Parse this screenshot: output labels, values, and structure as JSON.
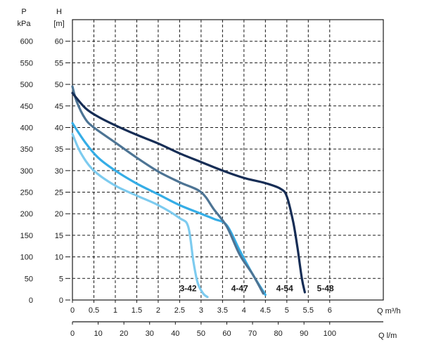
{
  "chart_data": {
    "type": "line",
    "head_axis": {
      "title": "H",
      "unit": "[m]",
      "range": [
        0,
        65
      ],
      "ticks": [
        0,
        5,
        10,
        15,
        20,
        25,
        30,
        35,
        40,
        45,
        50,
        55,
        60
      ],
      "grid": true
    },
    "pressure_axis": {
      "title": "P",
      "unit": "kPa",
      "ticks": [
        0,
        50,
        100,
        150,
        200,
        250,
        300,
        350,
        400,
        450,
        500,
        550,
        600
      ]
    },
    "flow_axis_m3h": {
      "label": "Q m³/h",
      "range": [
        0,
        7.25
      ],
      "ticks": [
        "0",
        "0.5",
        "1",
        "1.5",
        "2",
        "2.5",
        "3",
        "3.5",
        "4",
        "4.5",
        "5",
        "5.5",
        "6"
      ],
      "grid": true
    },
    "flow_axis_lmin": {
      "label": "Q l/m",
      "ticks": [
        "0",
        "10",
        "20",
        "30",
        "40",
        "50",
        "60",
        "70",
        "80",
        "90",
        "100"
      ]
    },
    "series": [
      {
        "name": "3-42",
        "color": "#7dcbef",
        "points": [
          [
            0,
            38.5
          ],
          [
            0.2,
            34
          ],
          [
            0.5,
            30
          ],
          [
            1,
            26.5
          ],
          [
            1.5,
            24.2
          ],
          [
            2,
            22
          ],
          [
            2.5,
            19
          ],
          [
            2.7,
            17
          ],
          [
            2.82,
            9
          ],
          [
            2.92,
            4
          ],
          [
            3.05,
            1.5
          ],
          [
            3.15,
            0.7
          ]
        ]
      },
      {
        "name": "4-47",
        "color": "#35ade6",
        "points": [
          [
            0,
            41
          ],
          [
            0.3,
            36.5
          ],
          [
            0.6,
            33
          ],
          [
            1,
            30
          ],
          [
            1.5,
            27
          ],
          [
            2,
            24.5
          ],
          [
            2.5,
            22
          ],
          [
            3,
            20
          ],
          [
            3.3,
            18.8
          ],
          [
            3.6,
            17.3
          ],
          [
            3.9,
            11.5
          ],
          [
            4.2,
            6
          ],
          [
            4.5,
            1.2
          ]
        ]
      },
      {
        "name": "4-54",
        "color": "#4d7494",
        "points": [
          [
            0,
            49.5
          ],
          [
            0.1,
            46
          ],
          [
            0.3,
            42
          ],
          [
            0.5,
            40
          ],
          [
            1,
            36.5
          ],
          [
            1.5,
            33
          ],
          [
            2,
            29.8
          ],
          [
            2.5,
            27.3
          ],
          [
            3,
            25
          ],
          [
            3.3,
            21
          ],
          [
            3.6,
            17
          ],
          [
            3.9,
            10.5
          ],
          [
            4.2,
            6
          ],
          [
            4.45,
            1.5
          ]
        ]
      },
      {
        "name": "5-48",
        "color": "#162d55",
        "points": [
          [
            0,
            48
          ],
          [
            0.3,
            44.5
          ],
          [
            0.6,
            42.5
          ],
          [
            1,
            40.5
          ],
          [
            1.5,
            38.3
          ],
          [
            2,
            36.3
          ],
          [
            2.5,
            34
          ],
          [
            3,
            32
          ],
          [
            3.5,
            30
          ],
          [
            4,
            28.3
          ],
          [
            4.5,
            27.1
          ],
          [
            4.85,
            25.8
          ],
          [
            5,
            24
          ],
          [
            5.15,
            18
          ],
          [
            5.25,
            12
          ],
          [
            5.35,
            5
          ],
          [
            5.42,
            1.8
          ]
        ]
      }
    ]
  }
}
